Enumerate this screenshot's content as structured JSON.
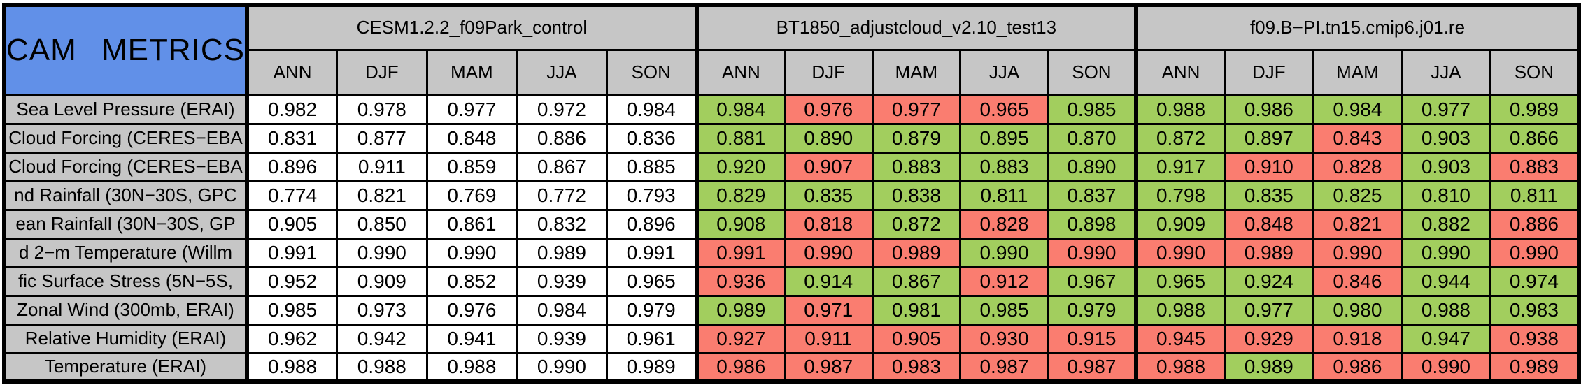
{
  "chart_data": {
    "type": "table",
    "title": "CAM METRICS",
    "seasons": [
      "ANN",
      "DJF",
      "MAM",
      "JJA",
      "SON"
    ],
    "groups": [
      {
        "name": "CESM1.2.2_f09Park_control",
        "seasons": [
          "ANN",
          "DJF",
          "MAM",
          "JJA",
          "SON"
        ]
      },
      {
        "name": "BT1850_adjustcloud_v2.10_test13",
        "seasons": [
          "ANN",
          "DJF",
          "MAM",
          "JJA",
          "SON"
        ]
      },
      {
        "name": "f09.B−PI.tn15.cmip6.j01.re",
        "seasons": [
          "ANN",
          "DJF",
          "MAM",
          "JJA",
          "SON"
        ]
      }
    ],
    "palette": {
      "white": "#FFFFFF",
      "green": "#A2CE5E",
      "red": "#FA7D70",
      "header_gray": "#C6C6C6",
      "corner_blue": "#6190E8",
      "border": "#000000"
    },
    "rows": [
      {
        "label": "Sea Level Pressure (ERAI)",
        "values": [
          "0.982",
          "0.978",
          "0.977",
          "0.972",
          "0.984",
          "0.984",
          "0.976",
          "0.977",
          "0.965",
          "0.985",
          "0.988",
          "0.986",
          "0.984",
          "0.977",
          "0.989"
        ],
        "colors": [
          "w",
          "w",
          "w",
          "w",
          "w",
          "g",
          "r",
          "r",
          "r",
          "g",
          "g",
          "g",
          "g",
          "g",
          "g"
        ]
      },
      {
        "label": "Cloud Forcing (CERES−EBA",
        "values": [
          "0.831",
          "0.877",
          "0.848",
          "0.886",
          "0.836",
          "0.881",
          "0.890",
          "0.879",
          "0.895",
          "0.870",
          "0.872",
          "0.897",
          "0.843",
          "0.903",
          "0.866"
        ],
        "colors": [
          "w",
          "w",
          "w",
          "w",
          "w",
          "g",
          "g",
          "g",
          "g",
          "g",
          "g",
          "g",
          "r",
          "g",
          "g"
        ]
      },
      {
        "label": "Cloud Forcing (CERES−EBA",
        "values": [
          "0.896",
          "0.911",
          "0.859",
          "0.867",
          "0.885",
          "0.920",
          "0.907",
          "0.883",
          "0.883",
          "0.890",
          "0.917",
          "0.910",
          "0.828",
          "0.903",
          "0.883"
        ],
        "colors": [
          "w",
          "w",
          "w",
          "w",
          "w",
          "g",
          "r",
          "g",
          "g",
          "g",
          "g",
          "r",
          "r",
          "g",
          "r"
        ]
      },
      {
        "label": "nd Rainfall (30N−30S, GPC",
        "values": [
          "0.774",
          "0.821",
          "0.769",
          "0.772",
          "0.793",
          "0.829",
          "0.835",
          "0.838",
          "0.811",
          "0.837",
          "0.798",
          "0.835",
          "0.825",
          "0.810",
          "0.811"
        ],
        "colors": [
          "w",
          "w",
          "w",
          "w",
          "w",
          "g",
          "g",
          "g",
          "g",
          "g",
          "g",
          "g",
          "g",
          "g",
          "g"
        ]
      },
      {
        "label": "ean Rainfall (30N−30S, GP",
        "values": [
          "0.905",
          "0.850",
          "0.861",
          "0.832",
          "0.896",
          "0.908",
          "0.818",
          "0.872",
          "0.828",
          "0.898",
          "0.909",
          "0.848",
          "0.821",
          "0.882",
          "0.886"
        ],
        "colors": [
          "w",
          "w",
          "w",
          "w",
          "w",
          "g",
          "r",
          "g",
          "r",
          "g",
          "g",
          "r",
          "r",
          "g",
          "r"
        ]
      },
      {
        "label": "d 2−m Temperature (Willm",
        "values": [
          "0.991",
          "0.990",
          "0.990",
          "0.989",
          "0.991",
          "0.991",
          "0.990",
          "0.989",
          "0.990",
          "0.990",
          "0.990",
          "0.989",
          "0.990",
          "0.990",
          "0.990"
        ],
        "colors": [
          "w",
          "w",
          "w",
          "w",
          "w",
          "r",
          "r",
          "r",
          "g",
          "r",
          "r",
          "r",
          "r",
          "g",
          "r"
        ]
      },
      {
        "label": "fic Surface Stress (5N−5S,",
        "values": [
          "0.952",
          "0.909",
          "0.852",
          "0.939",
          "0.965",
          "0.936",
          "0.914",
          "0.867",
          "0.912",
          "0.967",
          "0.965",
          "0.924",
          "0.846",
          "0.944",
          "0.974"
        ],
        "colors": [
          "w",
          "w",
          "w",
          "w",
          "w",
          "r",
          "g",
          "g",
          "r",
          "g",
          "g",
          "g",
          "r",
          "g",
          "g"
        ]
      },
      {
        "label": "Zonal Wind (300mb, ERAI)",
        "values": [
          "0.985",
          "0.973",
          "0.976",
          "0.984",
          "0.979",
          "0.989",
          "0.971",
          "0.981",
          "0.985",
          "0.979",
          "0.988",
          "0.977",
          "0.980",
          "0.988",
          "0.983"
        ],
        "colors": [
          "w",
          "w",
          "w",
          "w",
          "w",
          "g",
          "r",
          "g",
          "g",
          "g",
          "g",
          "g",
          "g",
          "g",
          "g"
        ]
      },
      {
        "label": "Relative Humidity (ERAI)",
        "values": [
          "0.962",
          "0.942",
          "0.941",
          "0.939",
          "0.961",
          "0.927",
          "0.911",
          "0.905",
          "0.930",
          "0.915",
          "0.945",
          "0.929",
          "0.918",
          "0.947",
          "0.938"
        ],
        "colors": [
          "w",
          "w",
          "w",
          "w",
          "w",
          "r",
          "r",
          "r",
          "r",
          "r",
          "r",
          "r",
          "r",
          "g",
          "r"
        ]
      },
      {
        "label": "Temperature (ERAI)",
        "values": [
          "0.988",
          "0.988",
          "0.988",
          "0.990",
          "0.989",
          "0.986",
          "0.987",
          "0.983",
          "0.987",
          "0.987",
          "0.988",
          "0.989",
          "0.986",
          "0.990",
          "0.989"
        ],
        "colors": [
          "w",
          "w",
          "w",
          "w",
          "w",
          "r",
          "r",
          "r",
          "r",
          "r",
          "r",
          "g",
          "r",
          "r",
          "r"
        ]
      }
    ]
  }
}
